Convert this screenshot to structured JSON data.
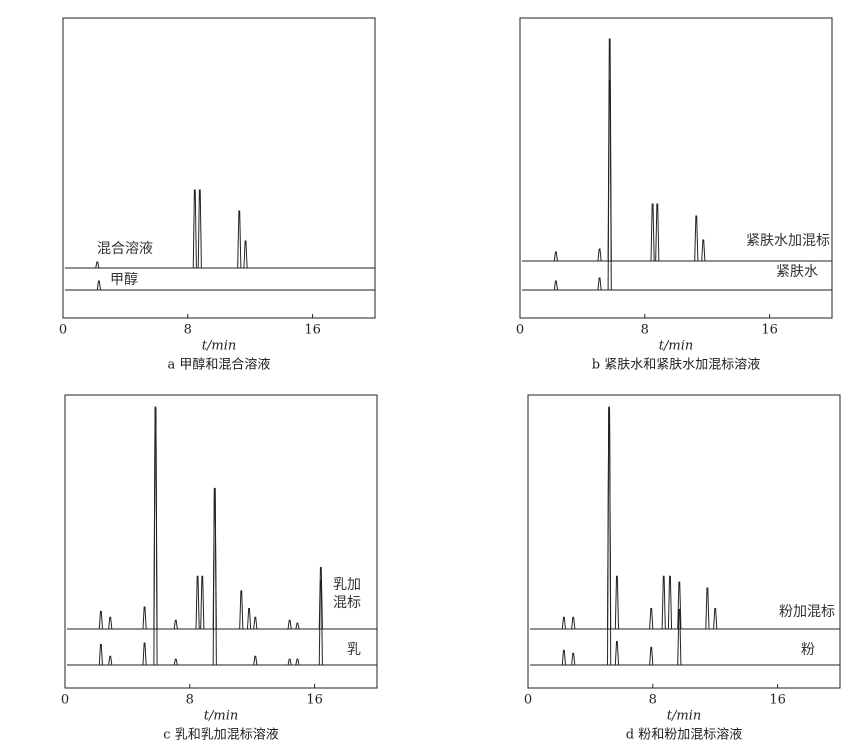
{
  "chart_data": [
    {
      "type": "line",
      "caption": "a 甲醇和混合溶液",
      "xlabel": "t/min",
      "xlim": [
        0,
        20
      ],
      "xticks": [
        0,
        8,
        16
      ],
      "ylim": [
        0,
        100
      ],
      "series": [
        {
          "name": "混合溶液",
          "color": "#222222",
          "x": [
            2.2,
            8.45,
            8.77,
            11.3,
            11.7
          ],
          "values": [
            2,
            26,
            26,
            19,
            9
          ]
        },
        {
          "name": "甲醇",
          "color": "#222222",
          "x": [
            2.3
          ],
          "values": [
            3
          ]
        }
      ]
    },
    {
      "type": "line",
      "caption": "b 紧肤水和紧肤水加混标溶液",
      "xlabel": "t/min",
      "xlim": [
        0,
        20
      ],
      "xticks": [
        0,
        8,
        16
      ],
      "ylim": [
        0,
        100
      ],
      "series": [
        {
          "name": "紧肤水加混标",
          "color": "#222222",
          "x": [
            2.3,
            5.1,
            5.75,
            8.5,
            8.8,
            11.3,
            11.75
          ],
          "values": [
            3,
            4,
            74,
            19,
            19,
            15,
            7
          ]
        },
        {
          "name": "紧肤水",
          "color": "#222222",
          "x": [
            2.3,
            5.1,
            5.75
          ],
          "values": [
            3,
            4,
            70
          ]
        }
      ]
    },
    {
      "type": "line",
      "caption": "c 乳和乳加混标溶液",
      "xlabel": "t/min",
      "xlim": [
        0,
        20
      ],
      "xticks": [
        0,
        8,
        16
      ],
      "ylim": [
        0,
        100
      ],
      "series": [
        {
          "name": "乳加混标",
          "color": "#222222",
          "x": [
            2.3,
            2.9,
            5.1,
            5.8,
            7.1,
            8.5,
            8.8,
            9.6,
            11.3,
            11.8,
            12.2,
            14.4,
            14.9,
            16.4
          ],
          "values": [
            6,
            4,
            7.5,
            75,
            3,
            18,
            18,
            48,
            13,
            7,
            4,
            3,
            2,
            21
          ]
        },
        {
          "name": "乳",
          "color": "#222222",
          "x": [
            2.3,
            2.9,
            5.1,
            5.8,
            7.1,
            9.6,
            12.2,
            14.4,
            14.9,
            16.4
          ],
          "values": [
            7,
            3,
            7.5,
            88,
            2,
            60,
            3,
            2,
            2,
            29
          ]
        }
      ]
    },
    {
      "type": "line",
      "caption": "d 粉和粉加混标溶液",
      "xlabel": "t/min",
      "xlim": [
        0,
        20
      ],
      "xticks": [
        0,
        8,
        16
      ],
      "ylim": [
        0,
        100
      ],
      "series": [
        {
          "name": "粉加混标",
          "color": "#222222",
          "x": [
            2.3,
            2.9,
            5.2,
            5.7,
            7.9,
            8.7,
            9.1,
            9.7,
            11.5,
            12.0
          ],
          "values": [
            4,
            4,
            75,
            18,
            7,
            18,
            18,
            16,
            14,
            7
          ]
        },
        {
          "name": "粉",
          "color": "#222222",
          "x": [
            2.3,
            2.9,
            5.2,
            5.7,
            7.9,
            9.7
          ],
          "values": [
            5,
            4,
            88,
            8,
            6,
            19
          ]
        }
      ]
    }
  ]
}
